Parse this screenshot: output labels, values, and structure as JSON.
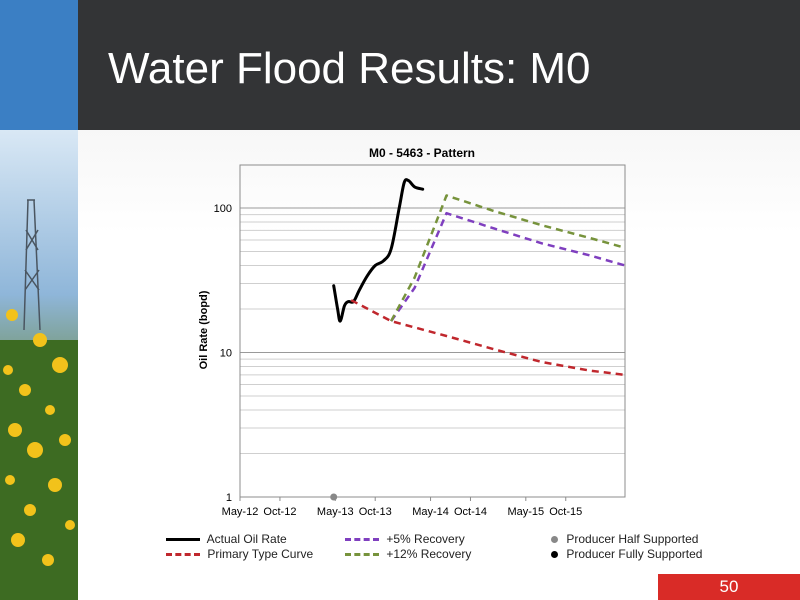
{
  "slide": {
    "title": "Water Flood Results: M0",
    "page_number": "50"
  },
  "colors": {
    "header_bg": "#333436",
    "accent_blue": "#3b7fc4",
    "page_badge": "#d92b27"
  },
  "chart_data": {
    "type": "line",
    "title": "M0 - 5463 - Pattern",
    "ylabel": "Oil Rate (bopd)",
    "xlabel": "",
    "yscale": "log",
    "ylim": [
      1,
      200
    ],
    "xlim": [
      "2012-05-01",
      "2016-05-15"
    ],
    "grid": true,
    "legend_position": "bottom",
    "x_ticks": [
      "May-12",
      "Oct-12",
      "May-13",
      "Oct-13",
      "May-14",
      "Oct-14",
      "May-15",
      "Oct-15"
    ],
    "x_tick_dates": [
      "2012-05-01",
      "2012-10-01",
      "2013-05-01",
      "2013-10-01",
      "2014-05-01",
      "2014-10-01",
      "2015-05-01",
      "2015-10-01"
    ],
    "y_ticks": [
      1,
      10,
      100
    ],
    "series": [
      {
        "name": "Actual Oil Rate",
        "color": "#000000",
        "style": "solid",
        "points": [
          [
            "2013-04-25",
            29
          ],
          [
            "2013-05-10",
            20
          ],
          [
            "2013-05-20",
            16.5
          ],
          [
            "2013-06-05",
            21
          ],
          [
            "2013-06-20",
            22.5
          ],
          [
            "2013-07-10",
            22.5
          ],
          [
            "2013-08-01",
            27
          ],
          [
            "2013-09-01",
            34
          ],
          [
            "2013-10-01",
            40
          ],
          [
            "2013-11-01",
            43
          ],
          [
            "2013-12-01",
            52
          ],
          [
            "2014-01-01",
            100
          ],
          [
            "2014-01-20",
            150
          ],
          [
            "2014-02-05",
            155
          ],
          [
            "2014-03-01",
            140
          ],
          [
            "2014-04-01",
            135
          ]
        ]
      },
      {
        "name": "Primary Type Curve",
        "color": "#c0272d",
        "style": "dashed",
        "points": [
          [
            "2013-07-01",
            23
          ],
          [
            "2013-12-01",
            16.5
          ],
          [
            "2014-07-01",
            13
          ],
          [
            "2015-01-01",
            10.5
          ],
          [
            "2015-07-01",
            8.6
          ],
          [
            "2016-01-01",
            7.5
          ],
          [
            "2016-05-15",
            7
          ]
        ]
      },
      {
        "name": "+5% Recovery",
        "color": "#7f3fbf",
        "style": "dashed",
        "points": [
          [
            "2013-12-01",
            16.5
          ],
          [
            "2014-03-01",
            28
          ],
          [
            "2014-07-01",
            92
          ],
          [
            "2015-01-01",
            72
          ],
          [
            "2015-07-01",
            57
          ],
          [
            "2016-01-01",
            47
          ],
          [
            "2016-05-15",
            40
          ]
        ]
      },
      {
        "name": "+12% Recovery",
        "color": "#77933c",
        "style": "dashed",
        "points": [
          [
            "2013-12-01",
            16.5
          ],
          [
            "2014-03-01",
            33
          ],
          [
            "2014-07-01",
            122
          ],
          [
            "2015-01-01",
            95
          ],
          [
            "2015-07-01",
            76
          ],
          [
            "2016-01-01",
            62
          ],
          [
            "2016-05-15",
            53
          ]
        ]
      },
      {
        "name": "Producer Half Supported",
        "color": "#888888",
        "style": "marker",
        "points": [
          [
            "2013-04-25",
            1
          ]
        ]
      },
      {
        "name": "Producer Fully Supported",
        "color": "#000000",
        "style": "marker",
        "points": []
      }
    ]
  }
}
